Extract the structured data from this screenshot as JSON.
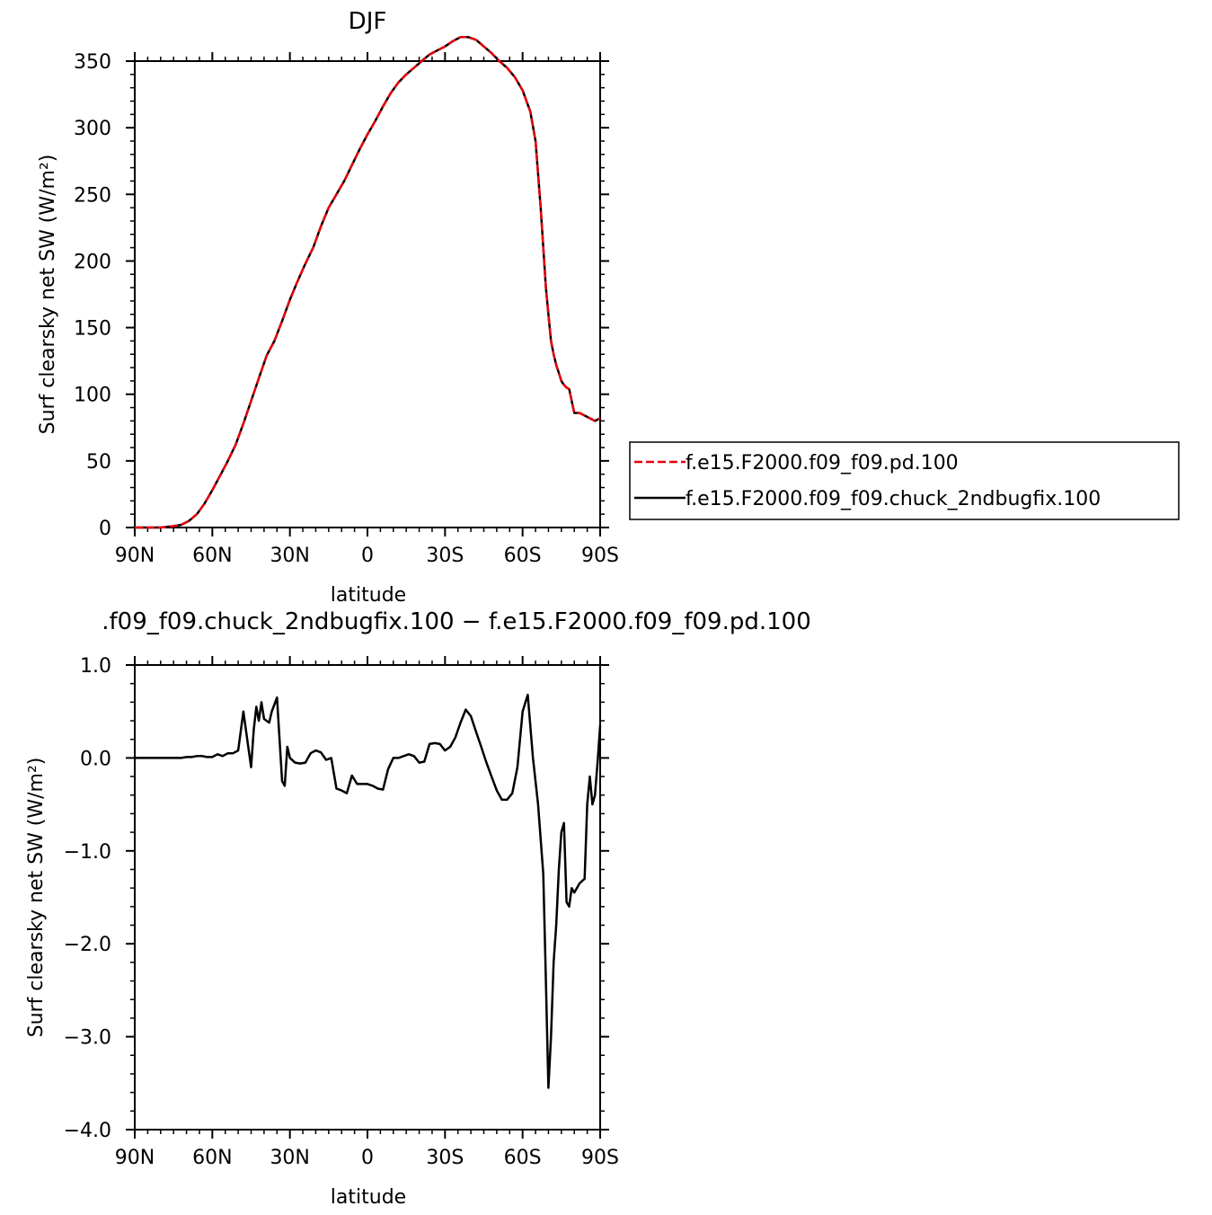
{
  "chart_data": [
    {
      "type": "line",
      "title": "DJF",
      "xlabel": "latitude",
      "ylabel": "Surf clearsky net SW (W/m²)",
      "xlim": [
        -90,
        90
      ],
      "ylim": [
        0,
        350
      ],
      "x_ticks": [
        {
          "value": -90,
          "label": "90N"
        },
        {
          "value": -60,
          "label": "60N"
        },
        {
          "value": -30,
          "label": "30N"
        },
        {
          "value": 0,
          "label": "0"
        },
        {
          "value": 30,
          "label": "30S"
        },
        {
          "value": 60,
          "label": "60S"
        },
        {
          "value": 90,
          "label": "90S"
        }
      ],
      "y_ticks": [
        {
          "value": 0,
          "label": "0"
        },
        {
          "value": 50,
          "label": "50"
        },
        {
          "value": 100,
          "label": "100"
        },
        {
          "value": 150,
          "label": "150"
        },
        {
          "value": 200,
          "label": "200"
        },
        {
          "value": 250,
          "label": "250"
        },
        {
          "value": 300,
          "label": "300"
        },
        {
          "value": 350,
          "label": "350"
        }
      ],
      "legend": {
        "placement": "right",
        "entries": [
          {
            "label": "f.e15.F2000.f09_f09.pd.100",
            "color": "#e8000b",
            "dash": "dashed"
          },
          {
            "label": "f.e15.F2000.f09_f09.chuck_2ndbugfix.100",
            "color": "#000000",
            "dash": "solid"
          }
        ]
      },
      "series": [
        {
          "name": "f.e15.F2000.f09_f09.pd.100",
          "color": "#e8000b",
          "dash": "dashed",
          "x": [
            -90,
            -85,
            -80,
            -75,
            -72,
            -69,
            -66,
            -63,
            -60,
            -57,
            -54,
            -51,
            -48,
            -45,
            -42,
            -39,
            -36,
            -33,
            -30,
            -27,
            -24,
            -21,
            -18,
            -15,
            -12,
            -9,
            -6,
            -3,
            0,
            3,
            6,
            9,
            12,
            15,
            18,
            21,
            24,
            27,
            30,
            33,
            36,
            39,
            42,
            45,
            48,
            51,
            54,
            57,
            60,
            63,
            65,
            67,
            68,
            69,
            70,
            71,
            72,
            73,
            74,
            75,
            76,
            77,
            78,
            79,
            80,
            82,
            84,
            86,
            88,
            90
          ],
          "values": [
            0,
            0,
            0,
            1,
            2,
            5,
            10,
            18,
            28,
            39,
            50,
            62,
            78,
            95,
            112,
            129,
            140,
            155,
            171,
            185,
            198,
            210,
            226,
            240,
            250,
            260,
            272,
            284,
            295,
            305,
            316,
            326,
            334,
            340,
            345,
            350,
            355,
            358,
            361,
            365,
            368,
            368,
            366,
            361,
            356,
            350,
            345,
            338,
            328,
            312,
            290,
            240,
            210,
            180,
            160,
            140,
            130,
            122,
            116,
            110,
            107,
            105,
            104,
            95,
            86,
            86,
            84,
            82,
            80,
            82
          ]
        },
        {
          "name": "f.e15.F2000.f09_f09.chuck_2ndbugfix.100",
          "color": "#000000",
          "dash": "solid",
          "x": [
            -90,
            -85,
            -80,
            -75,
            -72,
            -69,
            -66,
            -63,
            -60,
            -57,
            -54,
            -51,
            -48,
            -45,
            -42,
            -39,
            -36,
            -33,
            -30,
            -27,
            -24,
            -21,
            -18,
            -15,
            -12,
            -9,
            -6,
            -3,
            0,
            3,
            6,
            9,
            12,
            15,
            18,
            21,
            24,
            27,
            30,
            33,
            36,
            39,
            42,
            45,
            48,
            51,
            54,
            57,
            60,
            63,
            65,
            67,
            68,
            69,
            70,
            71,
            72,
            73,
            74,
            75,
            76,
            77,
            78,
            79,
            80,
            82,
            84,
            86,
            88,
            90
          ],
          "values": [
            0,
            0,
            0,
            1,
            2,
            5,
            10,
            18,
            28,
            39,
            50,
            62,
            78,
            95,
            112,
            129,
            140,
            155,
            171,
            185,
            198,
            210,
            226,
            240,
            250,
            260,
            272,
            284,
            295,
            305,
            316,
            326,
            334,
            340,
            345,
            350,
            355,
            358,
            361,
            365,
            368,
            368,
            366,
            361,
            356,
            350,
            345,
            338,
            328,
            312,
            290,
            240,
            210,
            180,
            160,
            140,
            130,
            122,
            116,
            110,
            107,
            105,
            104,
            95,
            86,
            86,
            84,
            82,
            80,
            82
          ]
        }
      ]
    },
    {
      "type": "line",
      "title": ".f09_f09.chuck_2ndbugfix.100 − f.e15.F2000.f09_f09.pd.100",
      "xlabel": "latitude",
      "ylabel": "Surf clearsky net SW (W/m²)",
      "xlim": [
        -90,
        90
      ],
      "ylim": [
        -4.0,
        1.0
      ],
      "x_ticks": [
        {
          "value": -90,
          "label": "90N"
        },
        {
          "value": -60,
          "label": "60N"
        },
        {
          "value": -30,
          "label": "30N"
        },
        {
          "value": 0,
          "label": "0"
        },
        {
          "value": 30,
          "label": "30S"
        },
        {
          "value": 60,
          "label": "60S"
        },
        {
          "value": 90,
          "label": "90S"
        }
      ],
      "y_ticks": [
        {
          "value": 1.0,
          "label": "1.0"
        },
        {
          "value": 0.0,
          "label": "0.0"
        },
        {
          "value": -1.0,
          "label": "−1.0"
        },
        {
          "value": -2.0,
          "label": "−2.0"
        },
        {
          "value": -3.0,
          "label": "−3.0"
        },
        {
          "value": -4.0,
          "label": "−4.0"
        }
      ],
      "series": [
        {
          "color": "#000000",
          "dash": "solid",
          "x": [
            -90,
            -80,
            -72,
            -70,
            -68,
            -66,
            -64,
            -62,
            -60,
            -58,
            -56,
            -54,
            -52,
            -50,
            -48,
            -46,
            -45,
            -44,
            -43,
            -42,
            -41,
            -40,
            -38,
            -37,
            -35,
            -33,
            -32,
            -31,
            -30,
            -28,
            -26,
            -24,
            -22,
            -20,
            -18,
            -16,
            -14,
            -12,
            -10,
            -8,
            -6,
            -4,
            -2,
            0,
            2,
            4,
            6,
            8,
            10,
            12,
            14,
            16,
            18,
            20,
            22,
            24,
            26,
            28,
            30,
            32,
            34,
            36,
            38,
            40,
            42,
            44,
            46,
            48,
            50,
            52,
            54,
            56,
            58,
            60,
            62,
            64,
            66,
            68,
            69,
            70,
            71,
            72,
            73,
            74,
            75,
            76,
            77,
            78,
            79,
            80,
            81,
            82,
            84,
            85,
            86,
            87,
            88,
            89,
            90
          ],
          "values": [
            0,
            0,
            0,
            0.01,
            0.01,
            0.02,
            0.02,
            0.01,
            0.01,
            0.04,
            0.02,
            0.05,
            0.05,
            0.08,
            0.5,
            0.1,
            -0.1,
            0.3,
            0.55,
            0.4,
            0.6,
            0.42,
            0.38,
            0.5,
            0.65,
            -0.25,
            -0.3,
            0.12,
            0.0,
            -0.05,
            -0.06,
            -0.05,
            0.05,
            0.08,
            0.06,
            -0.02,
            0.0,
            -0.33,
            -0.35,
            -0.38,
            -0.19,
            -0.28,
            -0.28,
            -0.28,
            -0.3,
            -0.33,
            -0.34,
            -0.12,
            0.0,
            0.0,
            0.02,
            0.04,
            0.02,
            -0.05,
            -0.04,
            0.15,
            0.16,
            0.15,
            0.08,
            0.12,
            0.22,
            0.38,
            0.52,
            0.45,
            0.28,
            0.12,
            -0.05,
            -0.2,
            -0.35,
            -0.45,
            -0.45,
            -0.38,
            -0.1,
            0.5,
            0.68,
            0.0,
            -0.5,
            -1.25,
            -2.4,
            -3.55,
            -3.0,
            -2.2,
            -1.8,
            -1.2,
            -0.8,
            -0.7,
            -1.55,
            -1.6,
            -1.4,
            -1.45,
            -1.4,
            -1.35,
            -1.3,
            -0.5,
            -0.2,
            -0.5,
            -0.4,
            -0.05,
            0.35
          ]
        }
      ]
    }
  ]
}
